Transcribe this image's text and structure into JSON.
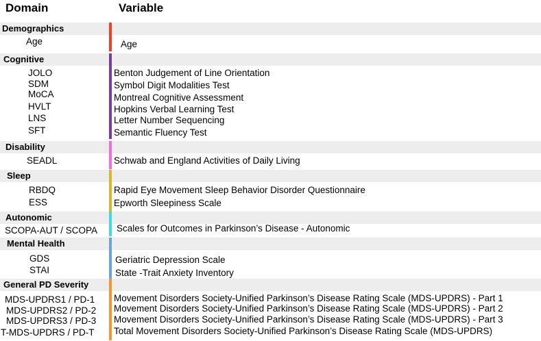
{
  "headers": {
    "domain": "Domain",
    "variable": "Variable"
  },
  "groups": [
    {
      "label": "Demographics",
      "color": "#e8432a",
      "items": [
        {
          "abbr": "Age",
          "desc": "Age"
        }
      ]
    },
    {
      "label": "Cognitive",
      "color": "#7a3a9c",
      "items": [
        {
          "abbr": "JOLO",
          "desc": "Benton Judgement of Line Orientation"
        },
        {
          "abbr": "SDM",
          "desc": "Symbol Digit Modalities Test"
        },
        {
          "abbr": "MoCA",
          "desc": "Montreal Cognitive Assessment"
        },
        {
          "abbr": "HVLT",
          "desc": "Hopkins Verbal Learning Test"
        },
        {
          "abbr": "LNS",
          "desc": "Letter Number Sequencing"
        },
        {
          "abbr": "SFT",
          "desc": "Semantic Fluency Test"
        }
      ]
    },
    {
      "label": "Disability",
      "color": "#f06ee0",
      "items": [
        {
          "abbr": "SEADL",
          "desc": "Schwab and England Activities of Daily Living"
        }
      ]
    },
    {
      "label": "Sleep",
      "color": "#d9b62e",
      "items": [
        {
          "abbr": "RBDQ",
          "desc": "Rapid Eye Movement Sleep Behavior Disorder Questionnaire"
        },
        {
          "abbr": "ESS",
          "desc": "Epworth Sleepiness Scale"
        }
      ]
    },
    {
      "label": "Autonomic",
      "color": "#3fd9e0",
      "items": [
        {
          "abbr": "SCOPA-AUT / SCOPA",
          "desc": "Scales for Outcomes in Parkinson’s Disease - Autonomic"
        }
      ]
    },
    {
      "label": "Mental Health",
      "color": "#6aa4dc",
      "items": [
        {
          "abbr": "GDS",
          "desc": "Geriatric Depression Scale"
        },
        {
          "abbr": "STAI",
          "desc": "State -Trait Anxiety Inventory"
        }
      ]
    },
    {
      "label": "General PD Severity",
      "color": "#f2962d",
      "items": [
        {
          "abbr": "MDS-UPDRS1 / PD-1",
          "desc": "Movement Disorders Society-Unified Parkinson’s Disease Rating Scale (MDS-UPDRS) - Part 1"
        },
        {
          "abbr": "MDS-UPDRS2 / PD-2",
          "desc": "Movement Disorders Society-Unified Parkinson’s Disease Rating Scale (MDS-UPDRS) - Part 2"
        },
        {
          "abbr": "MDS-UPDRS3 / PD-3",
          "desc": "Movement Disorders Society-Unified Parkinson’s Disease Rating Scale (MDS-UPDRS) - Part 3"
        },
        {
          "abbr": "T-MDS-UPDRS / PD-T",
          "desc": "Total Movement Disorders Society-Unified Parkinson’s Disease Rating Scale (MDS-UPDRS)"
        }
      ]
    }
  ]
}
